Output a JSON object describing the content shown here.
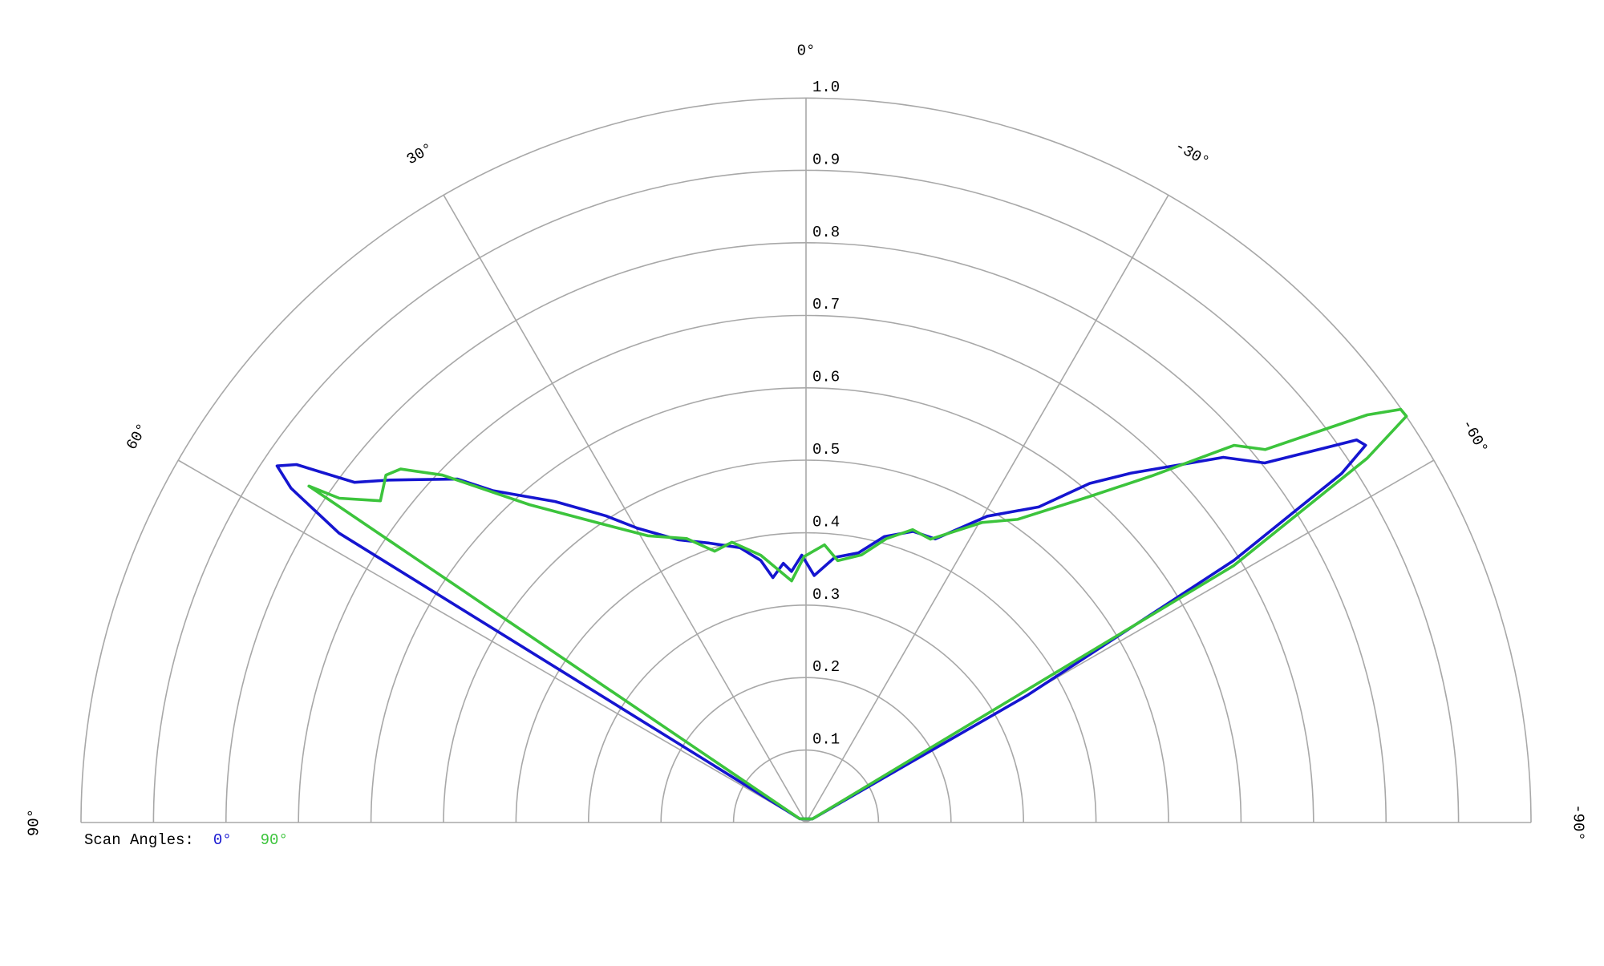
{
  "chart_data": {
    "type": "polar",
    "legend_title": "Scan Angles:",
    "rlim": [
      0,
      1
    ],
    "rticks": [
      0.1,
      0.2,
      0.3,
      0.4,
      0.5,
      0.6,
      0.7,
      0.8,
      0.9,
      {
        "value": 1,
        "label": "1.0"
      }
    ],
    "thetalim": [
      90,
      -90
    ],
    "thetaticks": [
      {
        "value": 90,
        "label": "90°"
      },
      {
        "value": 60,
        "label": "60°"
      },
      {
        "value": 30,
        "label": "30°"
      },
      {
        "value": 0,
        "label": "0°"
      },
      {
        "value": -30,
        "label": "-30°"
      },
      {
        "value": -60,
        "label": "-60°"
      },
      {
        "value": -90,
        "label": "-90°"
      }
    ],
    "grid": true,
    "series": [
      {
        "name": "0°",
        "color": "#1515d0",
        "theta": [
          59,
          58.2,
          57.0,
          56.0,
          54.9,
          53.0,
          50.5,
          45.4,
          43.3,
          38.0,
          33.1,
          29.8,
          24.3,
          19.1,
          13.5,
          9.8,
          7.7,
          5.0,
          3.3,
          0.9,
          -1.9,
          -6.2,
          -11.0,
          -15.3,
          -20.2,
          -24.5,
          -30.6,
          -36.4,
          -39.9,
          -42.9,
          -48.8,
          -51.9,
          -55.2,
          -56.0,
          -56.9,
          -58.5,
          -60.1,
          -60.5
        ],
        "values": [
          0.01,
          0.758,
          0.847,
          0.88,
          0.859,
          0.78,
          0.743,
          0.675,
          0.629,
          0.562,
          0.505,
          0.468,
          0.428,
          0.408,
          0.39,
          0.367,
          0.341,
          0.359,
          0.347,
          0.369,
          0.341,
          0.368,
          0.379,
          0.409,
          0.428,
          0.43,
          0.491,
          0.541,
          0.61,
          0.658,
          0.765,
          0.804,
          0.925,
          0.931,
          0.882,
          0.692,
          0.353,
          0.01
        ]
      },
      {
        "name": "90°",
        "color": "#3cc43c",
        "theta": [
          59,
          55.9,
          55.2,
          52.9,
          50.4,
          48.9,
          46.3,
          41.0,
          35.5,
          28.9,
          22.8,
          18.6,
          14.8,
          9.6,
          3.4,
          0.4,
          -3.8,
          -6.9,
          -11.7,
          -15.8,
          -20.0,
          -23.7,
          -30.4,
          -34.9,
          -41.0,
          -44.9,
          -48.6,
          -50.9,
          -54.0,
          -55.2,
          -55.9,
          -57.0,
          -59.0,
          -60.5
        ],
        "values": [
          0.01,
          0.828,
          0.784,
          0.736,
          0.752,
          0.742,
          0.694,
          0.581,
          0.511,
          0.452,
          0.425,
          0.395,
          0.4,
          0.374,
          0.334,
          0.367,
          0.384,
          0.364,
          0.377,
          0.407,
          0.43,
          0.427,
          0.48,
          0.51,
          0.596,
          0.675,
          0.787,
          0.816,
          0.957,
          0.999,
          1.0,
          0.923,
          0.688,
          0.01
        ]
      }
    ]
  }
}
